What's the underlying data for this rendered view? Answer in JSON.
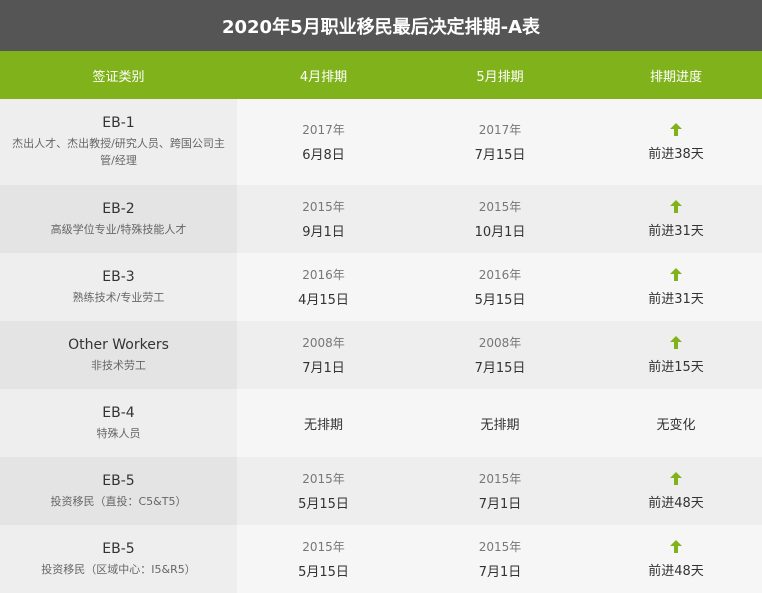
{
  "title": "2020年5月职业移民最后决定排期-A表",
  "headers": [
    "签证类别",
    "4月排期",
    "5月排期",
    "排期进度"
  ],
  "accent": "#80b31b",
  "rows": [
    {
      "code": "EB-1",
      "desc": "杰出人才、杰出教授/研究人员、跨国公司主管/经理",
      "apr_year": "2017年",
      "apr_date": "6月8日",
      "may_year": "2017年",
      "may_date": "7月15日",
      "progress": "前进38天",
      "icon": "arrow-up-icon"
    },
    {
      "code": "EB-2",
      "desc": "高级学位专业/特殊技能人才",
      "apr_year": "2015年",
      "apr_date": "9月1日",
      "may_year": "2015年",
      "may_date": "10月1日",
      "progress": "前进31天",
      "icon": "arrow-up-icon"
    },
    {
      "code": "EB-3",
      "desc": "熟练技术/专业劳工",
      "apr_year": "2016年",
      "apr_date": "4月15日",
      "may_year": "2016年",
      "may_date": "5月15日",
      "progress": "前进31天",
      "icon": "arrow-up-icon"
    },
    {
      "code": "Other Workers",
      "desc": "非技术劳工",
      "apr_year": "2008年",
      "apr_date": "7月1日",
      "may_year": "2008年",
      "may_date": "7月15日",
      "progress": "前进15天",
      "icon": "arrow-up-icon"
    },
    {
      "code": "EB-4",
      "desc": "特殊人员",
      "apr_date": "无排期",
      "may_date": "无排期",
      "progress": "无变化"
    },
    {
      "code": "EB-5",
      "desc": "投资移民（直投：C5&T5）",
      "apr_year": "2015年",
      "apr_date": "5月15日",
      "may_year": "2015年",
      "may_date": "7月1日",
      "progress": "前进48天",
      "icon": "arrow-up-icon"
    },
    {
      "code": "EB-5",
      "desc": "投资移民（区域中心：I5&R5）",
      "apr_year": "2015年",
      "apr_date": "5月15日",
      "may_year": "2015年",
      "may_date": "7月1日",
      "progress": "前进48天",
      "icon": "arrow-up-icon"
    }
  ]
}
